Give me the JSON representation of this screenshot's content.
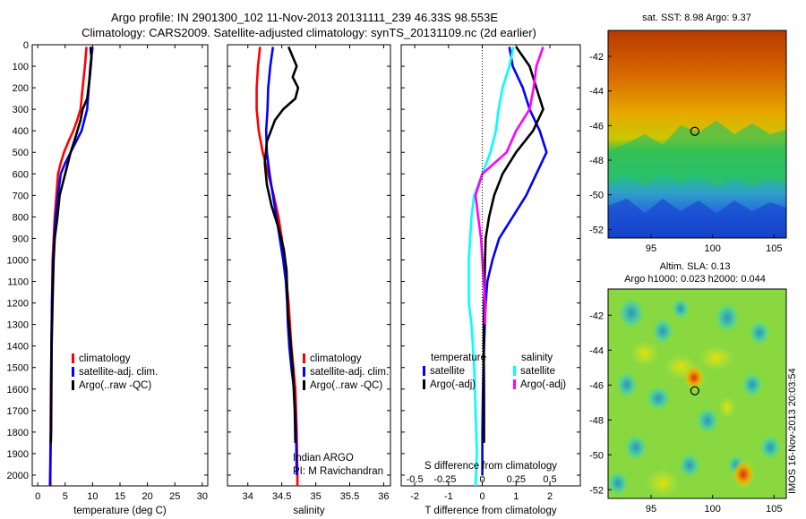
{
  "header": {
    "line1": "Argo profile: IN 2901300_102 11-Nov-2013 20131111_239 46.33S 98.553E",
    "line2": "Climatology: CARS2009. Satellite-adjusted climatology: synTS_20131109.nc (2d earlier)"
  },
  "credit": "IMOS 16-Nov-2013 20:03:54",
  "colors": {
    "climatology": "#ff0000",
    "satellite": "#0000ff",
    "argo": "#000000",
    "sal_satellite": "#00ffff",
    "sal_argo": "#ff00ff"
  },
  "chart_data": [
    {
      "type": "line",
      "panel": "temperature",
      "xlabel": "temperature (deg C)",
      "ylabel": "",
      "xlim": [
        -1,
        31
      ],
      "ylim": [
        2050,
        0
      ],
      "xticks": [
        0,
        5,
        10,
        15,
        20,
        25,
        30
      ],
      "yticks": [
        0,
        100,
        200,
        300,
        400,
        500,
        600,
        700,
        800,
        900,
        1000,
        1100,
        1200,
        1300,
        1400,
        1500,
        1600,
        1700,
        1800,
        1900,
        2000
      ],
      "legend": {
        "placement": "bottom-right",
        "entries": [
          "climatology",
          "satellite-adj. clim.",
          "Argo(..raw -QC)"
        ]
      },
      "series": [
        {
          "name": "climatology",
          "color": "#ff0000",
          "x": [
            8.9,
            8.6,
            8.2,
            7.8,
            7.2,
            6.5,
            5.6,
            4.8,
            4.2,
            3.7,
            3.4,
            3.1,
            2.9,
            2.7,
            2.6,
            2.5,
            2.4,
            2.35,
            2.3,
            2.25,
            2.2,
            2.2
          ],
          "y": [
            10,
            100,
            200,
            300,
            350,
            400,
            450,
            500,
            550,
            600,
            700,
            800,
            900,
            1000,
            1200,
            1400,
            1600,
            1800,
            1900,
            2000,
            2050,
            2050
          ]
        },
        {
          "name": "satellite-adj. clim.",
          "color": "#0000ff",
          "x": [
            10.0,
            9.6,
            9.3,
            9.0,
            8.5,
            8.0,
            7.0,
            6.0,
            5.0,
            4.2,
            3.7,
            3.3,
            3.0,
            2.8,
            2.6,
            2.5,
            2.45,
            2.4,
            2.35,
            2.3,
            2.3
          ],
          "y": [
            10,
            100,
            200,
            300,
            350,
            400,
            450,
            500,
            550,
            600,
            700,
            800,
            900,
            1000,
            1200,
            1400,
            1600,
            1800,
            1900,
            2000,
            2050
          ]
        },
        {
          "name": "Argo(..raw -QC)",
          "color": "#000000",
          "x": [
            9.6,
            9.8,
            9.5,
            9.0,
            8.2,
            7.8,
            7.0,
            6.0,
            5.2,
            4.5,
            4.0,
            3.6,
            3.1,
            2.9,
            2.7,
            2.55,
            2.5,
            2.45,
            2.4
          ],
          "y": [
            10,
            60,
            150,
            250,
            300,
            350,
            420,
            500,
            580,
            650,
            700,
            800,
            900,
            1000,
            1200,
            1400,
            1600,
            1800,
            1850
          ]
        }
      ]
    },
    {
      "type": "line",
      "panel": "salinity",
      "xlabel": "salinity",
      "ylabel": "",
      "xlim": [
        33.7,
        36.1
      ],
      "ylim": [
        2050,
        0
      ],
      "xticks": [
        34,
        34.5,
        35,
        35.5,
        36
      ],
      "legend": {
        "placement": "bottom-right",
        "entries": [
          "climatology",
          "satellite-adj. clim.",
          "Argo(..raw -QC)"
        ]
      },
      "annotation": [
        "Indian ARGO",
        "PI: M Ravichandran"
      ],
      "series": [
        {
          "name": "climatology",
          "color": "#ff0000",
          "x": [
            34.18,
            34.15,
            34.13,
            34.13,
            34.16,
            34.22,
            34.3,
            34.38,
            34.45,
            34.5,
            34.54,
            34.57,
            34.6,
            34.62,
            34.64,
            34.67,
            34.7,
            34.72,
            34.73,
            34.73
          ],
          "y": [
            10,
            100,
            200,
            300,
            400,
            500,
            600,
            700,
            800,
            900,
            1000,
            1100,
            1200,
            1300,
            1400,
            1500,
            1600,
            1800,
            2000,
            2050
          ]
        },
        {
          "name": "satellite-adj. clim.",
          "color": "#0000ff",
          "x": [
            34.37,
            34.33,
            34.3,
            34.29,
            34.27,
            34.28,
            34.32,
            34.37,
            34.42,
            34.47,
            34.52,
            34.56,
            34.58,
            34.59,
            34.61,
            34.64,
            34.68,
            34.71,
            34.72
          ],
          "y": [
            10,
            100,
            200,
            300,
            400,
            500,
            600,
            700,
            800,
            900,
            1000,
            1100,
            1200,
            1300,
            1400,
            1500,
            1600,
            1800,
            2000
          ]
        },
        {
          "name": "Argo(..raw -QC)",
          "color": "#000000",
          "x": [
            34.6,
            34.72,
            34.66,
            34.74,
            34.7,
            34.52,
            34.4,
            34.28,
            34.25,
            34.28,
            34.35,
            34.45,
            34.53,
            34.57,
            34.58,
            34.59,
            34.62,
            34.66,
            34.69,
            34.7
          ],
          "y": [
            10,
            100,
            150,
            200,
            250,
            300,
            350,
            450,
            550,
            650,
            750,
            850,
            950,
            1050,
            1150,
            1250,
            1350,
            1500,
            1700,
            1850
          ]
        }
      ]
    },
    {
      "type": "line",
      "panel": "difference",
      "xlabel": "T difference from climatology",
      "top_xlabel": "S difference from climatology",
      "xlim": [
        -2.4,
        2.9
      ],
      "ylim": [
        2050,
        0
      ],
      "xticks": [
        -2,
        -1,
        0,
        1,
        2
      ],
      "top_xticks": [
        "-0.5",
        "-0.25",
        "0",
        "0.25",
        "0.5"
      ],
      "legend": {
        "placement": "bottom",
        "groups": [
          {
            "heading": "temperature",
            "entries": [
              "satellite",
              "Argo(-adj)"
            ]
          },
          {
            "heading": "salinity",
            "entries": [
              "satellite",
              "Argo(-adj)"
            ]
          }
        ]
      },
      "series": [
        {
          "name": "temperature satellite",
          "color": "#0000ff",
          "x": [
            0.8,
            0.9,
            1.2,
            1.4,
            1.7,
            1.9,
            1.6,
            1.3,
            0.9,
            0.5,
            0.3,
            0.15,
            0.1,
            0.05,
            0.02,
            0.0,
            0.0
          ],
          "y": [
            10,
            100,
            200,
            300,
            400,
            500,
            600,
            700,
            800,
            900,
            1000,
            1100,
            1200,
            1400,
            1600,
            1800,
            2000
          ]
        },
        {
          "name": "temperature Argo(-adj)",
          "color": "#000000",
          "x": [
            1.0,
            1.4,
            1.6,
            1.8,
            1.5,
            1.0,
            0.6,
            0.35,
            0.2,
            0.1,
            0.08,
            0.05,
            0.04,
            0.05,
            0.05
          ],
          "y": [
            10,
            100,
            200,
            300,
            400,
            500,
            600,
            700,
            800,
            900,
            1000,
            1200,
            1400,
            1600,
            1850
          ]
        },
        {
          "name": "salinity satellite",
          "color": "#00ffff",
          "x": [
            0.23,
            0.2,
            0.15,
            0.12,
            0.1,
            0.06,
            0.0,
            -0.06,
            -0.08,
            -0.09,
            -0.1,
            -0.1,
            -0.1,
            -0.08,
            -0.06,
            -0.05,
            -0.04,
            -0.05
          ],
          "y": [
            10,
            100,
            200,
            300,
            400,
            500,
            600,
            700,
            800,
            900,
            1000,
            1100,
            1200,
            1300,
            1500,
            1700,
            1900,
            2050
          ]
        },
        {
          "name": "salinity Argo(-adj)",
          "color": "#ff00ff",
          "x": [
            0.45,
            0.4,
            0.38,
            0.35,
            0.25,
            0.18,
            0.0,
            -0.05,
            -0.03,
            -0.01,
            0.0,
            0.01,
            0.02,
            0.02
          ],
          "y": [
            10,
            100,
            200,
            300,
            400,
            500,
            600,
            700,
            800,
            900,
            1000,
            1100,
            1200,
            1300
          ]
        }
      ]
    },
    {
      "type": "heatmap",
      "panel": "sst-map",
      "title": "sat. SST: 8.98 Argo: 9.37",
      "xticks": [
        95,
        100,
        105
      ],
      "yticks": [
        -42,
        -44,
        -46,
        -48,
        -50,
        -52
      ],
      "xlim": [
        91.5,
        106
      ],
      "ylim": [
        -52.5,
        -40.5
      ],
      "marker": {
        "x": 98.553,
        "y": -46.33
      }
    },
    {
      "type": "heatmap",
      "panel": "sla-map",
      "title": [
        "Altim. SLA: 0.13",
        "Argo h1000: 0.023 h2000: 0.044"
      ],
      "xticks": [
        95,
        100,
        105
      ],
      "yticks": [
        -42,
        -44,
        -46,
        -48,
        -50,
        -52
      ],
      "xlim": [
        91.5,
        106
      ],
      "ylim": [
        -52.5,
        -40.5
      ],
      "marker": {
        "x": 98.553,
        "y": -46.33
      }
    }
  ]
}
